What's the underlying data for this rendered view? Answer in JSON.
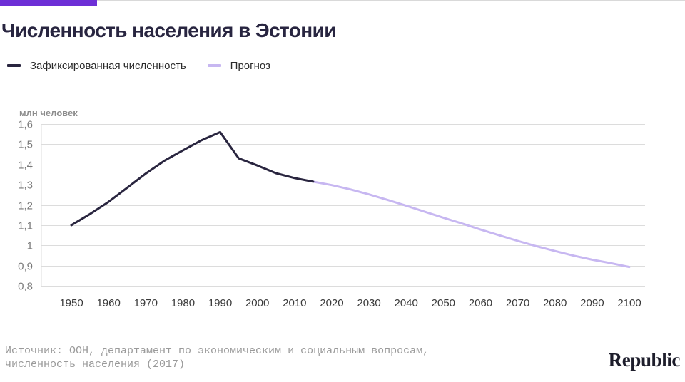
{
  "title": "Численность населения в Эстонии",
  "legend": {
    "actual_label": "Зафиксированная численность",
    "forecast_label": "Прогноз"
  },
  "source": "Источник: ООН, департамент по экономическим и социальным вопросам,\nчисленность населения (2017)",
  "brand": "Republic",
  "colors": {
    "accent": "#6d2fd6",
    "actual": "#29253f",
    "forecast": "#c7b7f1",
    "grid": "#dcdcdc",
    "tick": "#7a7a7a"
  },
  "chart_data": {
    "type": "line",
    "title": "Численность населения в Эстонии",
    "ylabel": "млн человек",
    "xlabel": "",
    "xlim": [
      1950,
      2100
    ],
    "ylim": [
      0.8,
      1.6
    ],
    "x_ticks": [
      1950,
      1960,
      1970,
      1980,
      1990,
      2000,
      2010,
      2020,
      2030,
      2040,
      2050,
      2060,
      2070,
      2080,
      2090,
      2100
    ],
    "y_ticks": [
      0.8,
      0.9,
      1.0,
      1.1,
      1.2,
      1.3,
      1.4,
      1.5,
      1.6
    ],
    "y_tick_labels": [
      "0,8",
      "0,9",
      "1",
      "1,1",
      "1,2",
      "1,3",
      "1,4",
      "1,5",
      "1,6"
    ],
    "grid": true,
    "legend_position": "top-left",
    "series": [
      {
        "name": "Зафиксированная численность",
        "x": [
          1950,
          1955,
          1960,
          1965,
          1970,
          1975,
          1980,
          1985,
          1990,
          1995,
          2000,
          2005,
          2010,
          2015
        ],
        "y": [
          1.1,
          1.155,
          1.215,
          1.285,
          1.355,
          1.418,
          1.47,
          1.52,
          1.56,
          1.43,
          1.395,
          1.357,
          1.333,
          1.315
        ]
      },
      {
        "name": "Прогноз",
        "x": [
          2015,
          2020,
          2025,
          2030,
          2035,
          2040,
          2045,
          2050,
          2055,
          2060,
          2065,
          2070,
          2075,
          2080,
          2085,
          2090,
          2095,
          2100
        ],
        "y": [
          1.315,
          1.298,
          1.277,
          1.252,
          1.225,
          1.196,
          1.166,
          1.137,
          1.108,
          1.078,
          1.05,
          1.022,
          0.996,
          0.972,
          0.949,
          0.929,
          0.912,
          0.893
        ]
      }
    ]
  }
}
